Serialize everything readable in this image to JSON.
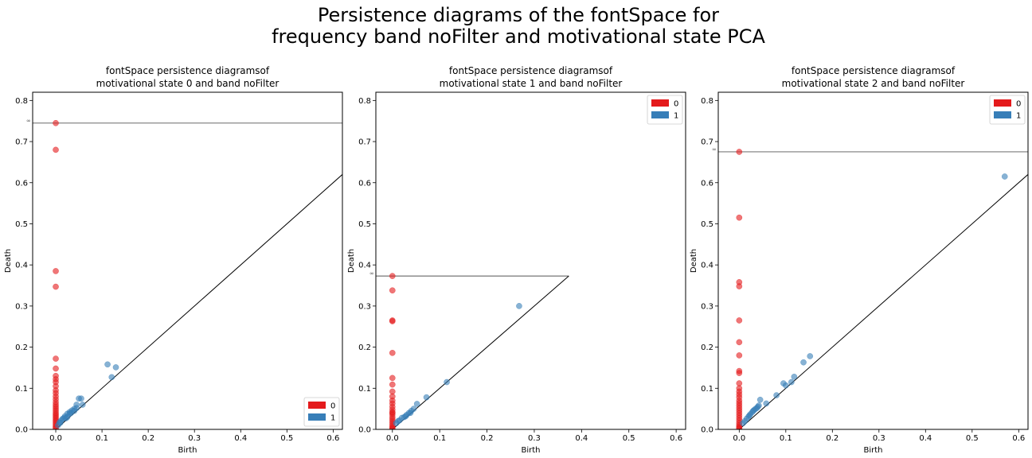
{
  "figure": {
    "suptitle_line1": "Persistence diagrams of the fontSpace for",
    "suptitle_line2": "frequency band noFilter and motivational state PCA"
  },
  "colors": {
    "h0": "#e41a1c",
    "h1": "#377eb8"
  },
  "chart_data": [
    {
      "type": "scatter",
      "title_line1": "fontSpace persistence diagramsof",
      "title_line2": "motivational state 0 and band noFilter",
      "xlabel": "Birth",
      "ylabel": "Death",
      "xlim": [
        -0.05,
        0.62
      ],
      "ylim": [
        0,
        0.82
      ],
      "xticks": [
        0.0,
        0.1,
        0.2,
        0.3,
        0.4,
        0.5,
        0.6
      ],
      "yticks": [
        0.0,
        0.1,
        0.2,
        0.3,
        0.4,
        0.5,
        0.6,
        0.7,
        0.8
      ],
      "infinity_y": 0.745,
      "infinity_label": "∞",
      "diagonal": [
        [
          -0.05,
          -0.05
        ],
        [
          0.62,
          0.62
        ]
      ],
      "legend_position": "lower-right",
      "legend": [
        "0",
        "1"
      ],
      "series": [
        {
          "name": "0",
          "dimension": 0,
          "x": [
            0,
            0,
            0,
            0,
            0,
            0,
            0,
            0,
            0,
            0,
            0,
            0,
            0,
            0,
            0,
            0,
            0,
            0,
            0,
            0,
            0,
            0,
            0,
            0,
            0,
            0,
            0,
            0,
            0,
            0
          ],
          "y": [
            0.745,
            0.68,
            0.385,
            0.347,
            0.172,
            0.148,
            0.13,
            0.122,
            0.115,
            0.105,
            0.095,
            0.088,
            0.08,
            0.073,
            0.066,
            0.06,
            0.055,
            0.05,
            0.045,
            0.04,
            0.036,
            0.032,
            0.028,
            0.024,
            0.02,
            0.016,
            0.012,
            0.008,
            0.005,
            0.002
          ]
        },
        {
          "name": "1",
          "dimension": 1,
          "x": [
            0.112,
            0.13,
            0.121,
            0.05,
            0.055,
            0.045,
            0.058,
            0.04,
            0.035,
            0.03,
            0.025,
            0.02,
            0.015,
            0.012,
            0.008,
            0.025,
            0.018,
            0.03,
            0.04,
            0.01,
            0.005,
            0.022,
            0.033,
            0.045
          ],
          "y": [
            0.158,
            0.151,
            0.127,
            0.075,
            0.075,
            0.06,
            0.06,
            0.05,
            0.046,
            0.042,
            0.038,
            0.032,
            0.026,
            0.022,
            0.017,
            0.03,
            0.028,
            0.038,
            0.045,
            0.016,
            0.01,
            0.027,
            0.04,
            0.052
          ]
        }
      ]
    },
    {
      "type": "scatter",
      "title_line1": "fontSpace persistence diagramsof",
      "title_line2": "motivational state 1 and band noFilter",
      "xlabel": "Birth",
      "ylabel": "Death",
      "xlim": [
        -0.035,
        0.62
      ],
      "ylim": [
        0,
        0.82
      ],
      "xticks": [
        0.0,
        0.1,
        0.2,
        0.3,
        0.4,
        0.5,
        0.6
      ],
      "yticks": [
        0.0,
        0.1,
        0.2,
        0.3,
        0.4,
        0.5,
        0.6,
        0.7,
        0.8
      ],
      "infinity_y": 0.373,
      "infinity_label": "∞",
      "diagonal": [
        [
          -0.035,
          -0.035
        ],
        [
          0.373,
          0.373
        ]
      ],
      "legend_position": "upper-right",
      "legend": [
        "0",
        "1"
      ],
      "series": [
        {
          "name": "0",
          "dimension": 0,
          "x": [
            0,
            0,
            0,
            0,
            0,
            0,
            0,
            0,
            0,
            0,
            0,
            0,
            0,
            0,
            0,
            0,
            0,
            0,
            0,
            0,
            0,
            0,
            0,
            0
          ],
          "y": [
            0.373,
            0.338,
            0.265,
            0.263,
            0.186,
            0.125,
            0.109,
            0.092,
            0.08,
            0.07,
            0.063,
            0.055,
            0.048,
            0.042,
            0.036,
            0.03,
            0.025,
            0.02,
            0.015,
            0.01,
            0.006,
            0.003,
            0.001,
            0.04
          ]
        },
        {
          "name": "1",
          "dimension": 1,
          "x": [
            0.268,
            0.115,
            0.072,
            0.052,
            0.045,
            0.04,
            0.035,
            0.03,
            0.025,
            0.02,
            0.015,
            0.012,
            0.008,
            0.038,
            0.028
          ],
          "y": [
            0.3,
            0.115,
            0.078,
            0.062,
            0.05,
            0.045,
            0.04,
            0.035,
            0.03,
            0.028,
            0.022,
            0.02,
            0.015,
            0.04,
            0.032
          ]
        }
      ]
    },
    {
      "type": "scatter",
      "title_line1": "fontSpace persistence diagramsof",
      "title_line2": "motivational state 2 and band noFilter",
      "xlabel": "Birth",
      "ylabel": "Death",
      "xlim": [
        -0.045,
        0.62
      ],
      "ylim": [
        0,
        0.82
      ],
      "xticks": [
        0.0,
        0.1,
        0.2,
        0.3,
        0.4,
        0.5,
        0.6
      ],
      "yticks": [
        0.0,
        0.1,
        0.2,
        0.3,
        0.4,
        0.5,
        0.6,
        0.7,
        0.8
      ],
      "infinity_y": 0.675,
      "infinity_label": "∞",
      "diagonal": [
        [
          -0.045,
          -0.045
        ],
        [
          0.62,
          0.62
        ]
      ],
      "legend_position": "upper-right",
      "legend": [
        "0",
        "1"
      ],
      "series": [
        {
          "name": "0",
          "dimension": 0,
          "x": [
            0,
            0,
            0,
            0,
            0,
            0,
            0,
            0,
            0,
            0,
            0,
            0,
            0,
            0,
            0,
            0,
            0,
            0,
            0,
            0,
            0,
            0,
            0,
            0,
            0,
            0,
            0,
            0
          ],
          "y": [
            0.675,
            0.515,
            0.358,
            0.348,
            0.265,
            0.212,
            0.18,
            0.142,
            0.137,
            0.112,
            0.1,
            0.092,
            0.085,
            0.078,
            0.07,
            0.064,
            0.058,
            0.052,
            0.046,
            0.04,
            0.034,
            0.028,
            0.022,
            0.016,
            0.011,
            0.007,
            0.004,
            0.002
          ]
        },
        {
          "name": "1",
          "dimension": 1,
          "x": [
            0.57,
            0.152,
            0.138,
            0.118,
            0.112,
            0.1,
            0.095,
            0.08,
            0.058,
            0.045,
            0.042,
            0.038,
            0.032,
            0.028,
            0.024,
            0.02,
            0.016,
            0.012,
            0.008,
            0.035,
            0.04,
            0.03,
            0.022
          ],
          "y": [
            0.615,
            0.178,
            0.163,
            0.128,
            0.115,
            0.107,
            0.112,
            0.083,
            0.063,
            0.072,
            0.058,
            0.052,
            0.047,
            0.042,
            0.037,
            0.031,
            0.026,
            0.02,
            0.015,
            0.05,
            0.055,
            0.045,
            0.034
          ]
        }
      ]
    }
  ]
}
